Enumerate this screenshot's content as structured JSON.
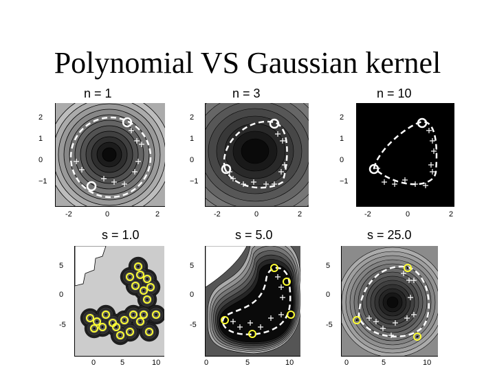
{
  "slide": {
    "title": "Polynomial VS Gaussian kernel"
  },
  "panels": [
    {
      "label": "n =  1",
      "xticks": [
        "-2",
        "0",
        "2"
      ],
      "yticks": [
        "2",
        "1",
        "0",
        "−1"
      ],
      "style": "poly1"
    },
    {
      "label": "n =  3",
      "xticks": [
        "-2",
        "0",
        "2"
      ],
      "yticks": [
        "2",
        "1",
        "0",
        "−1"
      ],
      "style": "poly3"
    },
    {
      "label": "n = 10",
      "xticks": [
        "-2",
        "0",
        "2"
      ],
      "yticks": [
        "2",
        "1",
        "0",
        "−1"
      ],
      "style": "poly10"
    },
    {
      "label": "s =  1.0",
      "xticks": [
        "0",
        "5",
        "10"
      ],
      "yticks": [
        "5",
        "0",
        "-5"
      ],
      "style": "gauss1"
    },
    {
      "label": "s =  5.0",
      "xticks": [
        "0",
        "5",
        "10"
      ],
      "yticks": [
        "5",
        "0",
        "-5"
      ],
      "style": "gauss5"
    },
    {
      "label": "s = 25.0",
      "xticks": [
        "0",
        "5",
        "10"
      ],
      "yticks": [
        "5",
        "0",
        "-5"
      ],
      "style": "gauss25"
    }
  ],
  "colors": {
    "background": "#ffffff",
    "contour_dark": "#000000",
    "contour_light": "#e6e6e6",
    "boundary": "#ffffff",
    "support_vector": "#ffff33"
  }
}
